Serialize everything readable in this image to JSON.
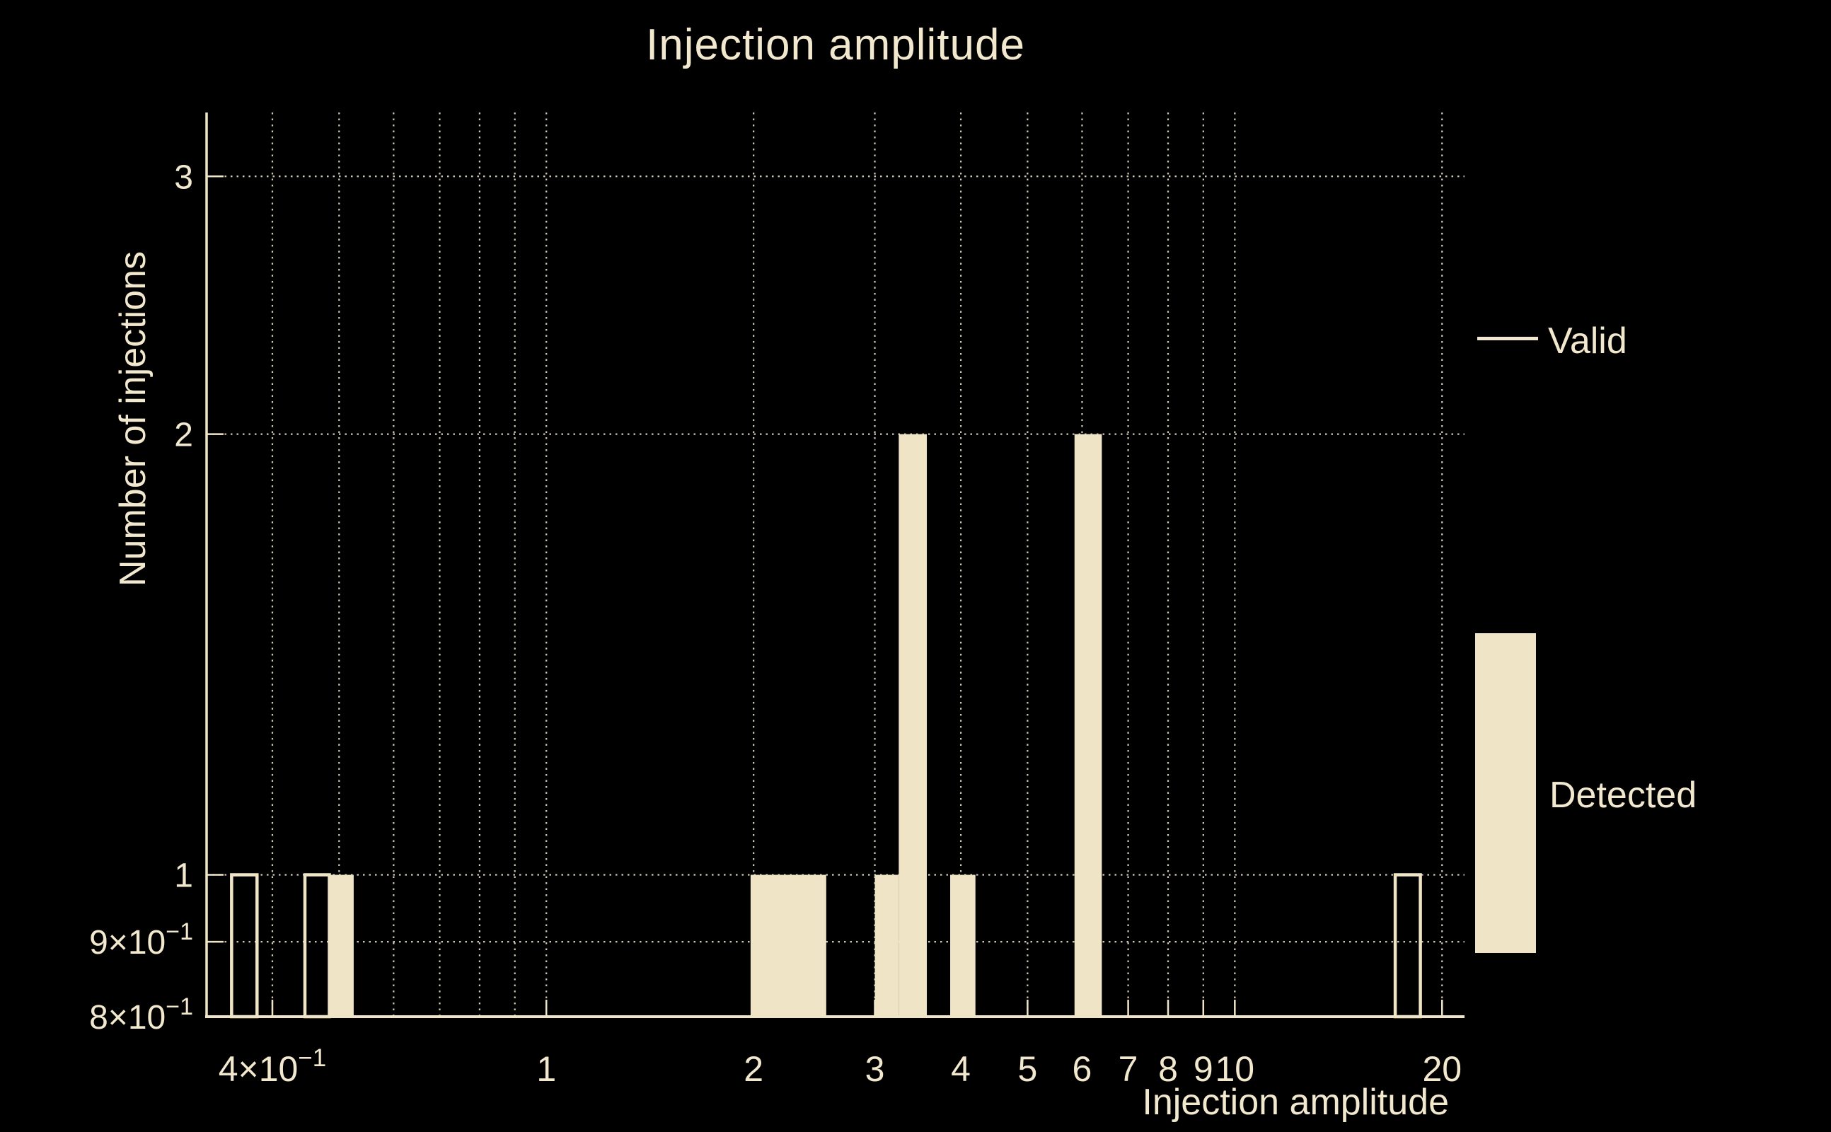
{
  "chart_data": {
    "type": "bar",
    "subtype": "histogram-log-log",
    "title": "Injection amplitude",
    "xlabel": "Injection amplitude",
    "ylabel": "Number of injections",
    "xscale": "log",
    "yscale": "log",
    "xlim": [
      0.321,
      21.56
    ],
    "ylim": [
      0.8,
      3.317
    ],
    "grid": "dotted",
    "x_gridlines": [
      0.4,
      0.5,
      0.6,
      0.7,
      0.8,
      0.9,
      1,
      2,
      3,
      4,
      5,
      6,
      7,
      8,
      9,
      10,
      20
    ],
    "y_gridlines": [
      0.9,
      1,
      2,
      3
    ],
    "x_ticks": [
      {
        "value": 0.4,
        "label": "4×10^−1"
      },
      {
        "value": 1,
        "label": "1"
      },
      {
        "value": 2,
        "label": "2"
      },
      {
        "value": 3,
        "label": "3"
      },
      {
        "value": 4,
        "label": "4"
      },
      {
        "value": 5,
        "label": "5"
      },
      {
        "value": 6,
        "label": "6"
      },
      {
        "value": 7,
        "label": "7"
      },
      {
        "value": 8,
        "label": "8"
      },
      {
        "value": 9,
        "label": "9"
      },
      {
        "value": 10,
        "label": "10"
      },
      {
        "value": 20,
        "label": "20"
      }
    ],
    "y_ticks": [
      {
        "value": 3,
        "label": "3"
      },
      {
        "value": 2,
        "label": "2"
      },
      {
        "value": 1,
        "label": "1"
      },
      {
        "value": 0.9,
        "label": "9×10^−1"
      },
      {
        "value": 0.8,
        "label": "8×10^−1"
      }
    ],
    "series": [
      {
        "name": "Valid",
        "style": "outline",
        "bins": [
          {
            "x0": 0.349,
            "x1": 0.38,
            "count": 1
          },
          {
            "x0": 0.446,
            "x1": 0.484,
            "count": 1
          },
          {
            "x0": 17.1,
            "x1": 18.6,
            "count": 1
          }
        ]
      },
      {
        "name": "Detected",
        "style": "filled",
        "bins": [
          {
            "x0": 0.484,
            "x1": 0.525,
            "count": 1
          },
          {
            "x0": 1.98,
            "x1": 2.55,
            "count": 1
          },
          {
            "x0": 3.0,
            "x1": 3.25,
            "count": 1
          },
          {
            "x0": 3.25,
            "x1": 3.57,
            "count": 2
          },
          {
            "x0": 3.86,
            "x1": 4.2,
            "count": 1
          },
          {
            "x0": 5.85,
            "x1": 6.41,
            "count": 2
          }
        ]
      }
    ],
    "legend": {
      "position": "right",
      "items": [
        {
          "label": "Valid",
          "type": "line"
        },
        {
          "label": "Detected",
          "type": "patch"
        }
      ]
    },
    "colors": {
      "background": "#000000",
      "foreground": "#efe5c6",
      "text": "#f1e8cd",
      "grid": "#cfc9b6"
    }
  }
}
